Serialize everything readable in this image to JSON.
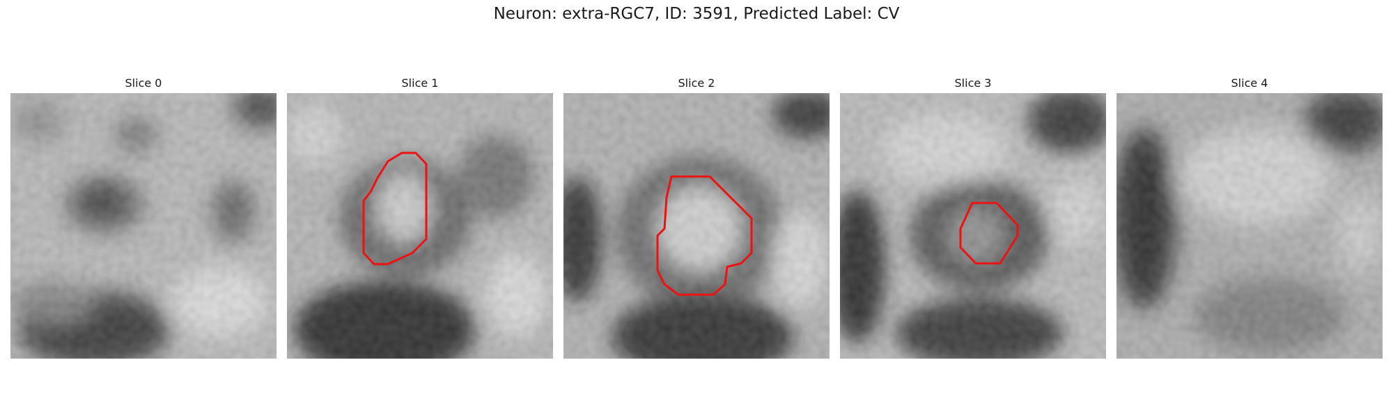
{
  "figure": {
    "title": "Neuron: extra-RGC7, ID: 3591, Predicted Label: CV"
  },
  "panels": [
    {
      "label": "Slice 0",
      "has_contour": false
    },
    {
      "label": "Slice 1",
      "has_contour": true
    },
    {
      "label": "Slice 2",
      "has_contour": true
    },
    {
      "label": "Slice 3",
      "has_contour": true
    },
    {
      "label": "Slice 4",
      "has_contour": false
    }
  ],
  "colors": {
    "contour": "#ee1111",
    "background": "#ffffff"
  }
}
